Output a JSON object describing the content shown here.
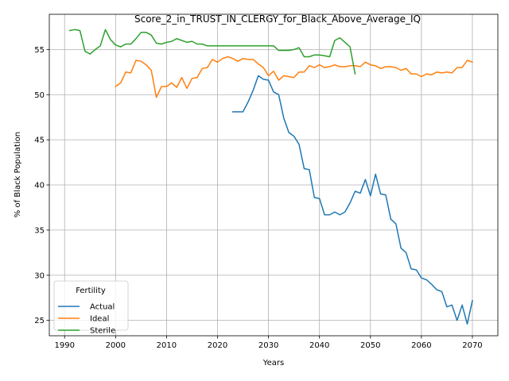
{
  "chart_data": {
    "type": "line",
    "title": "Score_2_in_TRUST_IN_CLERGY_for_Black_Above_Average_IQ",
    "xlabel": "Years",
    "ylabel": "% of Black Population",
    "xlim": [
      1987,
      2075
    ],
    "ylim": [
      23.3,
      58.9
    ],
    "xticks": [
      1990,
      2000,
      2010,
      2020,
      2030,
      2040,
      2050,
      2060,
      2070
    ],
    "yticks": [
      25,
      30,
      35,
      40,
      45,
      50,
      55
    ],
    "grid": true,
    "legend": {
      "title": "Fertility",
      "position": "lower-left"
    },
    "series": [
      {
        "name": "Actual",
        "color": "#1f77b4",
        "x": [
          2023,
          2024,
          2025,
          2026,
          2027,
          2028,
          2029,
          2030,
          2031,
          2032,
          2033,
          2034,
          2035,
          2036,
          2037,
          2038,
          2039,
          2040,
          2041,
          2042,
          2043,
          2044,
          2045,
          2046,
          2047,
          2048,
          2049,
          2050,
          2051,
          2052,
          2053,
          2054,
          2055,
          2056,
          2057,
          2058,
          2059,
          2060,
          2061,
          2062,
          2063,
          2064,
          2065,
          2066,
          2067,
          2068,
          2069,
          2070
        ],
        "y": [
          48.1,
          48.1,
          48.1,
          49.2,
          50.5,
          52.1,
          51.7,
          51.6,
          50.3,
          50.0,
          47.4,
          45.8,
          45.4,
          44.5,
          41.8,
          41.7,
          38.6,
          38.5,
          36.7,
          36.7,
          37.0,
          36.7,
          37.0,
          38.0,
          39.3,
          39.1,
          40.6,
          38.8,
          41.2,
          39.0,
          38.9,
          36.2,
          35.7,
          33.0,
          32.5,
          30.7,
          30.6,
          29.7,
          29.5,
          29.0,
          28.4,
          28.2,
          26.5,
          26.7,
          25.0,
          26.7,
          24.6,
          27.2
        ]
      },
      {
        "name": "Ideal",
        "color": "#ff7f0e",
        "x": [
          2000,
          2001,
          2002,
          2003,
          2004,
          2005,
          2006,
          2007,
          2008,
          2009,
          2010,
          2011,
          2012,
          2013,
          2014,
          2015,
          2016,
          2017,
          2018,
          2019,
          2020,
          2021,
          2022,
          2023,
          2024,
          2025,
          2026,
          2027,
          2028,
          2029,
          2030,
          2031,
          2032,
          2033,
          2034,
          2035,
          2036,
          2037,
          2038,
          2039,
          2040,
          2041,
          2042,
          2043,
          2044,
          2045,
          2046,
          2047,
          2048,
          2049,
          2050,
          2051,
          2052,
          2053,
          2054,
          2055,
          2056,
          2057,
          2058,
          2059,
          2060,
          2061,
          2062,
          2063,
          2064,
          2065,
          2066,
          2067,
          2068,
          2069,
          2070
        ],
        "y": [
          50.9,
          51.3,
          52.5,
          52.4,
          53.8,
          53.7,
          53.3,
          52.7,
          49.7,
          50.9,
          50.9,
          51.3,
          50.8,
          51.9,
          50.7,
          51.8,
          51.9,
          52.9,
          53.0,
          53.9,
          53.6,
          54.0,
          54.2,
          54.0,
          53.7,
          54.0,
          53.9,
          53.9,
          53.4,
          53.0,
          52.1,
          52.6,
          51.6,
          52.1,
          52.0,
          51.9,
          52.5,
          52.5,
          53.2,
          53.0,
          53.3,
          53.0,
          53.1,
          53.3,
          53.1,
          53.1,
          53.2,
          53.2,
          53.1,
          53.6,
          53.3,
          53.2,
          52.9,
          53.1,
          53.1,
          53.0,
          52.7,
          52.9,
          52.3,
          52.3,
          52.0,
          52.3,
          52.2,
          52.5,
          52.4,
          52.5,
          52.4,
          53.0,
          53.0,
          53.8,
          53.6
        ]
      },
      {
        "name": "Sterile",
        "color": "#2ca02c",
        "x": [
          1991,
          1992,
          1993,
          1994,
          1995,
          1996,
          1997,
          1998,
          1999,
          2000,
          2001,
          2002,
          2003,
          2004,
          2005,
          2006,
          2007,
          2008,
          2009,
          2010,
          2011,
          2012,
          2013,
          2014,
          2015,
          2016,
          2017,
          2018,
          2019,
          2020,
          2021,
          2022,
          2023,
          2024,
          2025,
          2026,
          2027,
          2028,
          2029,
          2030,
          2031,
          2032,
          2033,
          2034,
          2035,
          2036,
          2037,
          2038,
          2039,
          2040,
          2041,
          2042,
          2043,
          2044,
          2045,
          2046,
          2047
        ],
        "y": [
          57.1,
          57.2,
          57.1,
          54.8,
          54.5,
          55.0,
          55.4,
          57.2,
          56.1,
          55.5,
          55.3,
          55.6,
          55.6,
          56.2,
          56.9,
          56.9,
          56.6,
          55.7,
          55.6,
          55.8,
          55.9,
          56.2,
          56.0,
          55.8,
          55.9,
          55.6,
          55.6,
          55.4,
          55.4,
          55.4,
          55.4,
          55.4,
          55.4,
          55.4,
          55.4,
          55.4,
          55.4,
          55.4,
          55.4,
          55.4,
          55.4,
          54.9,
          54.9,
          54.9,
          55.0,
          55.2,
          54.2,
          54.2,
          54.4,
          54.4,
          54.3,
          54.2,
          56.0,
          56.3,
          55.8,
          55.3,
          52.3
        ]
      }
    ]
  }
}
